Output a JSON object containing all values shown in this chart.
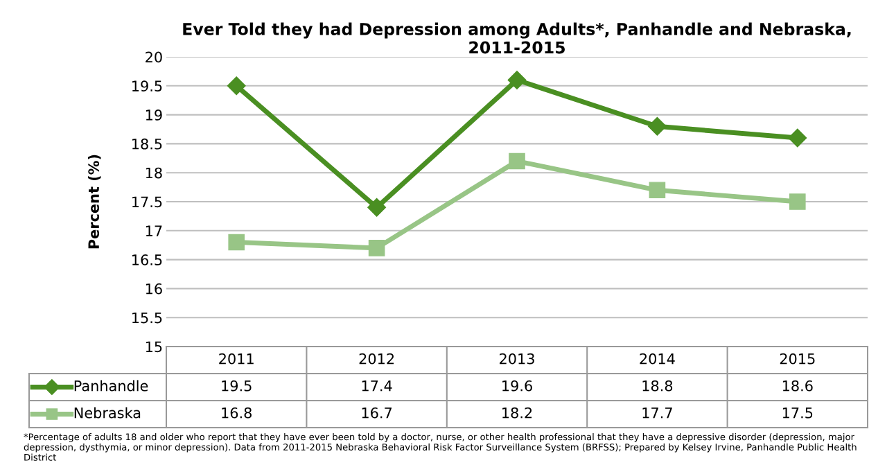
{
  "chart_data": {
    "type": "line",
    "title": "Ever Told they had Depression among Adults*, Panhandle and Nebraska, 2011-2015",
    "ylabel": "Percent (%)",
    "categories": [
      "2011",
      "2012",
      "2013",
      "2014",
      "2015"
    ],
    "series": [
      {
        "name": "Panhandle",
        "color": "#4a8f22",
        "marker": "diamond",
        "values": [
          19.5,
          17.4,
          19.6,
          18.8,
          18.6
        ]
      },
      {
        "name": "Nebraska",
        "color": "#98c586",
        "marker": "square",
        "values": [
          16.8,
          16.7,
          18.2,
          17.7,
          17.5
        ]
      }
    ],
    "ylim": [
      15,
      20
    ],
    "yticks": [
      15,
      15.5,
      16,
      16.5,
      17,
      17.5,
      18,
      18.5,
      19,
      19.5,
      20
    ],
    "grid": "y",
    "legend": "bottom",
    "data_labels": true,
    "line_style": "solid",
    "annotations": [
      "*Percentage of adults 18 and older who report that they have ever been told by a doctor, nurse, or other health professional that they have a depressive disorder (depression, major depression, dysthymia, or minor depression). Data from 2011-2015 Nebraska Behavioral Risk Factor Surveillance System (BRFSS); Prepared by Kelsey Irvine, Panhandle Public Health District"
    ]
  }
}
